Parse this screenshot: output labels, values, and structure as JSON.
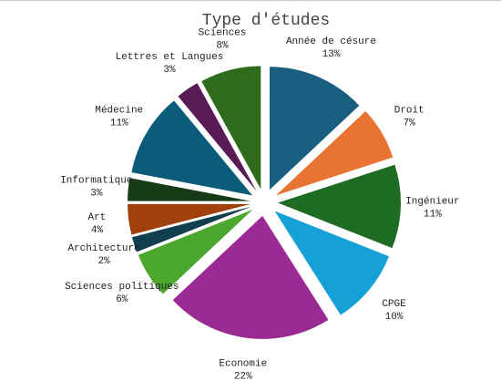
{
  "chart_data": {
    "type": "pie",
    "title": "Type d'études",
    "categories": [
      "Année de césure",
      "Droit",
      "Ingénieur",
      "CPGE",
      "Economie",
      "Sciences politiques",
      "Architecture",
      "Art",
      "Informatique",
      "Médecine",
      "Lettres et Langues",
      "Sciences"
    ],
    "values": [
      13,
      7,
      11,
      10,
      22,
      6,
      2,
      4,
      3,
      11,
      3,
      8
    ],
    "value_labels": [
      "13%",
      "7%",
      "11%",
      "10%",
      "22%",
      "6%",
      "2%",
      "4%",
      "3%",
      "11%",
      "3%",
      "8%"
    ],
    "colors": [
      "#1a5f80",
      "#e87332",
      "#1e6b23",
      "#15a0d8",
      "#9c2a95",
      "#4ca72e",
      "#123f4f",
      "#a0410d",
      "#173a17",
      "#0b5b7a",
      "#5a1a55",
      "#2e6b1a"
    ]
  }
}
